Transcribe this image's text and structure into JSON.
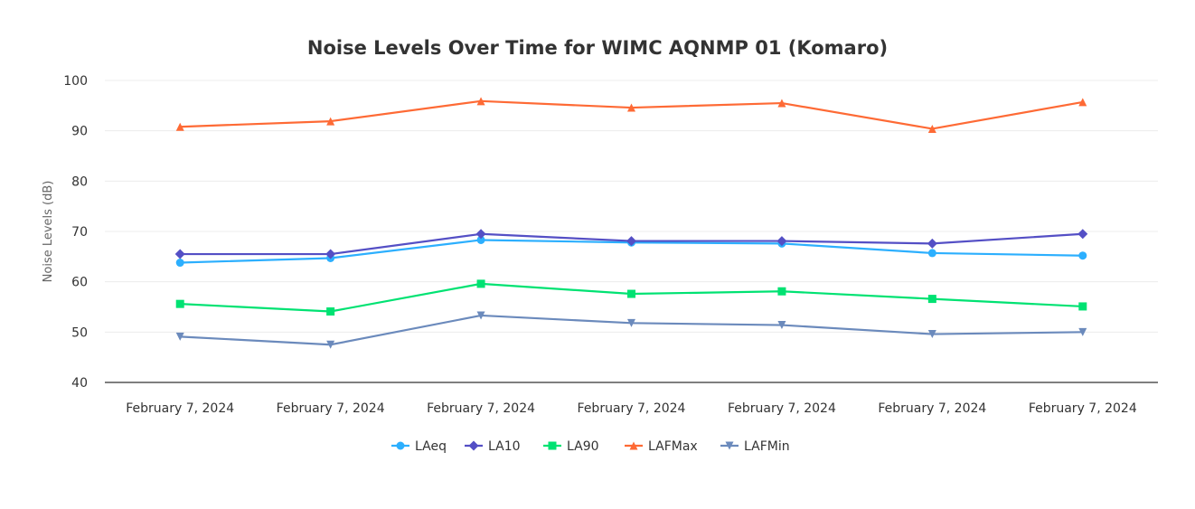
{
  "chart_data": {
    "type": "line",
    "title": "Noise Levels Over Time for WIMC AQNMP 01 (Komaro)",
    "xlabel": "",
    "ylabel": "Noise Levels (dB)",
    "ylim": [
      40,
      100
    ],
    "yticks": [
      40,
      50,
      60,
      70,
      80,
      90,
      100
    ],
    "grid": true,
    "legend": "bottom-center",
    "categories": [
      "February 7, 2024",
      "February 7, 2024",
      "February 7, 2024",
      "February 7, 2024",
      "February 7, 2024",
      "February 7, 2024",
      "February 7, 2024"
    ],
    "series": [
      {
        "name": "LAeq",
        "color": "#2caffe",
        "marker": "circle",
        "values": [
          63.8,
          64.7,
          68.3,
          67.8,
          67.6,
          65.7,
          65.2
        ]
      },
      {
        "name": "LA10",
        "color": "#544fc5",
        "marker": "diamond",
        "values": [
          65.5,
          65.5,
          69.5,
          68.1,
          68.1,
          67.6,
          69.5
        ]
      },
      {
        "name": "LA90",
        "color": "#00e272",
        "marker": "square",
        "values": [
          55.6,
          54.1,
          59.6,
          57.6,
          58.1,
          56.6,
          55.1
        ]
      },
      {
        "name": "LAFMax",
        "color": "#fe6a35",
        "marker": "triangle",
        "values": [
          90.8,
          91.9,
          95.9,
          94.6,
          95.5,
          90.4,
          95.7
        ]
      },
      {
        "name": "LAFMin",
        "color": "#6b8abc",
        "marker": "triangle-down",
        "values": [
          49.1,
          47.5,
          53.3,
          51.8,
          51.4,
          49.6,
          50.0
        ]
      }
    ]
  }
}
